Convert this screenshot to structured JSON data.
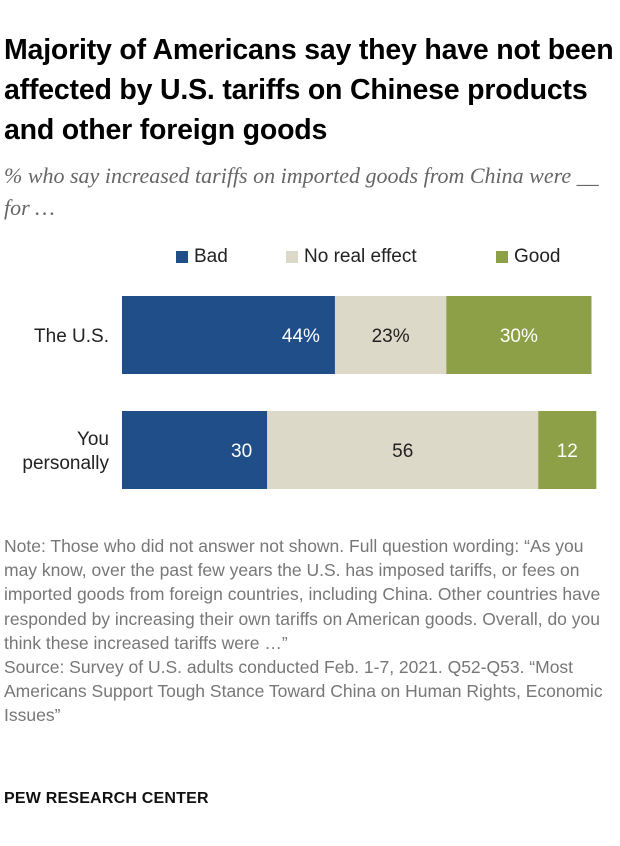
{
  "title": "Majority of Americans say they have not been affected by U.S. tariffs on Chinese products and other foreign goods",
  "subtitle": "% who say increased tariffs on imported goods from China were __ for …",
  "colors": {
    "bad": "#1f4e89",
    "no_effect": "#dcd9c9",
    "good": "#8d9f47"
  },
  "chart_data": {
    "type": "bar",
    "orientation": "horizontal",
    "stacked": true,
    "categories": [
      "The U.S.",
      "You personally"
    ],
    "series": [
      {
        "name": "Bad",
        "values": [
          44,
          30
        ],
        "labels": [
          "44%",
          "30"
        ]
      },
      {
        "name": "No real effect",
        "values": [
          23,
          56
        ],
        "labels": [
          "23%",
          "56"
        ]
      },
      {
        "name": "Good",
        "values": [
          30,
          12
        ],
        "labels": [
          "30%",
          "12"
        ]
      }
    ],
    "xlim": [
      0,
      100
    ],
    "legend_position": "top",
    "grid": false
  },
  "note": "Note: Those who did not answer not shown. Full question wording: “As you may know, over the past few years the U.S. has imposed tariffs, or fees on imported goods from foreign countries, including China. Other countries have responded by increasing their own tariffs on American goods. Overall, do you think these increased tariffs were …”",
  "source": "Source: Survey of U.S. adults conducted Feb. 1-7, 2021. Q52-Q53. “Most Americans Support Tough Stance Toward China on Human Rights, Economic Issues”",
  "brand": "PEW RESEARCH CENTER"
}
